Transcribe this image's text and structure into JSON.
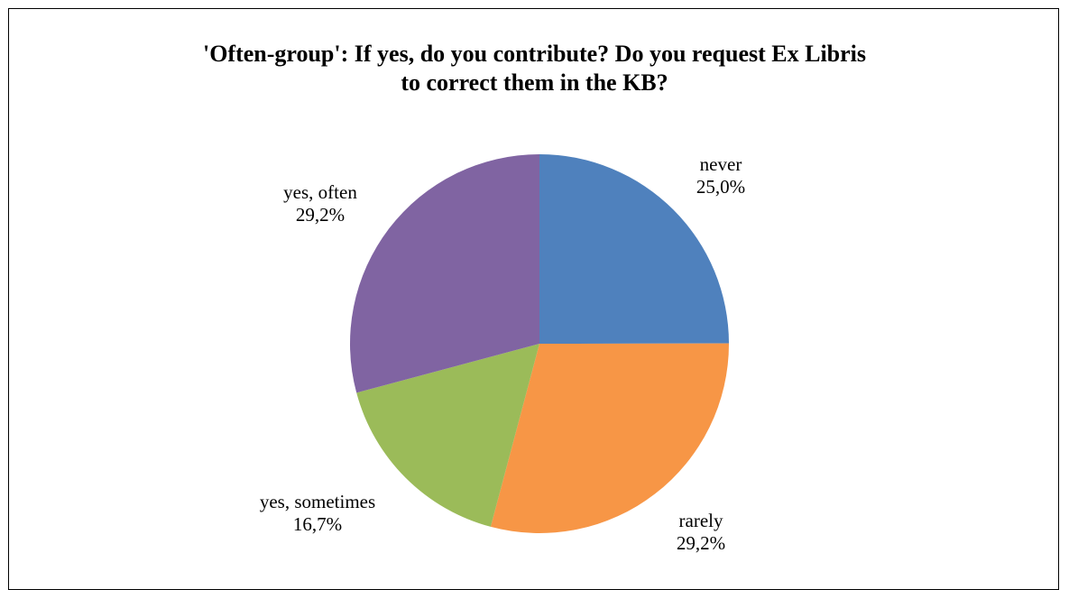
{
  "chart_data": {
    "type": "pie",
    "title_lines": [
      "'Often-group': If yes, do you contribute? Do you request Ex Libris",
      "to correct them in the KB?"
    ],
    "slices": [
      {
        "label": "never",
        "value": 25.0,
        "value_label": "25,0%",
        "color": "#4F81BD"
      },
      {
        "label": "rarely",
        "value": 29.2,
        "value_label": "29,2%",
        "color": "#F79646"
      },
      {
        "label": "yes, sometimes",
        "value": 16.7,
        "value_label": "16,7%",
        "color": "#9BBB59"
      },
      {
        "label": "yes, often",
        "value": 29.2,
        "value_label": "29,2%",
        "color": "#8064A2"
      }
    ],
    "start_angle": "12 o'clock",
    "direction": "clockwise",
    "legend": "none",
    "data_labels": "outside"
  }
}
